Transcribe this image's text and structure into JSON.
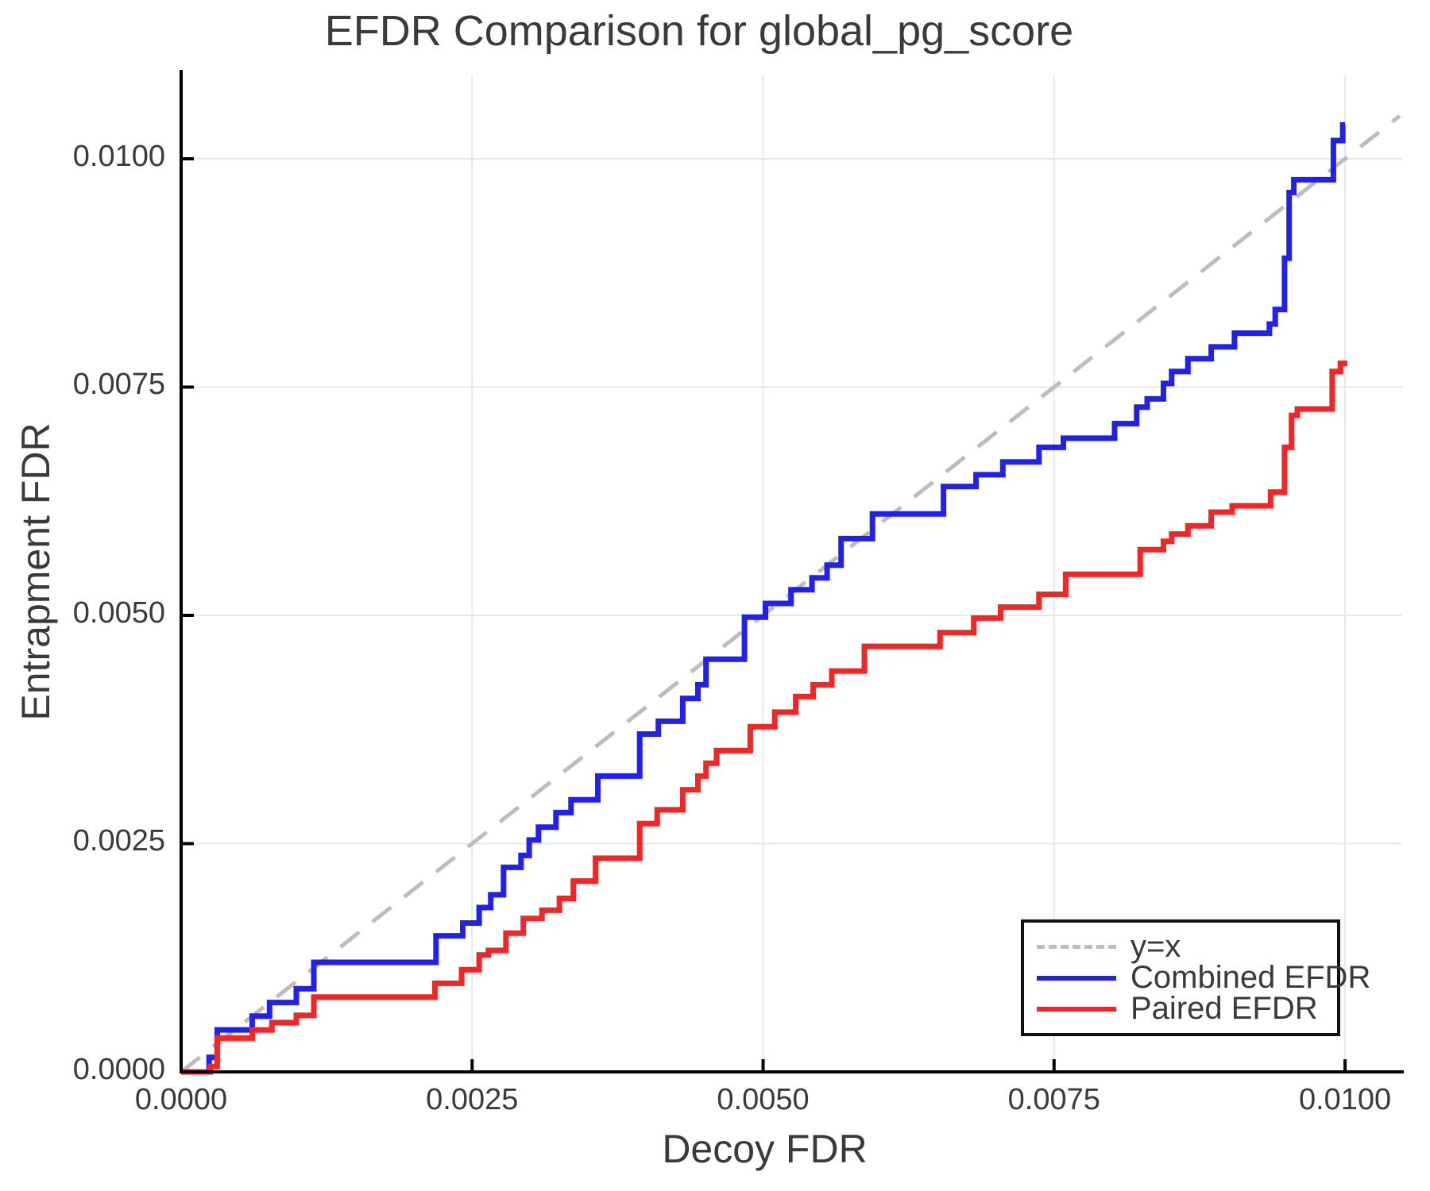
{
  "title": "EFDR Comparison for global_pg_score",
  "axes": {
    "x_label": "Decoy FDR",
    "y_label": "Entrapment FDR",
    "x_ticks": {
      "values": [
        0.0,
        0.0025,
        0.005,
        0.0075,
        0.01
      ],
      "labels": [
        "0.0000",
        "0.0025",
        "0.0050",
        "0.0075",
        "0.0100"
      ]
    },
    "y_ticks": {
      "values": [
        0.0,
        0.0025,
        0.005,
        0.0075,
        0.01
      ],
      "labels": [
        "0.0000",
        "0.0025",
        "0.0050",
        "0.0075",
        "0.0100"
      ]
    }
  },
  "colors": {
    "grid": "#e8e8e8",
    "spine": "#000000",
    "text": "#3a3a3a",
    "diagonal": "#bdbdbd",
    "combined": "#2020f0",
    "paired": "#f42525"
  },
  "legend": {
    "items": [
      {
        "label": "y=x",
        "color": "#bdbdbd",
        "dashed": true
      },
      {
        "label": "Combined EFDR",
        "color": "#2020f0",
        "dashed": false
      },
      {
        "label": "Paired EFDR",
        "color": "#f42525",
        "dashed": false
      }
    ]
  },
  "chart_data": {
    "type": "line",
    "title": "EFDR Comparison for global_pg_score",
    "xlabel": "Decoy FDR",
    "ylabel": "Entrapment FDR",
    "xlim": [
      0,
      0.010491
    ],
    "ylim": [
      0,
      0.010913
    ],
    "grid": true,
    "legend_position": "bottom-right",
    "series": [
      {
        "name": "y=x",
        "style": "dashed",
        "color": "#bdbdbd",
        "points": [
          [
            0,
            0
          ],
          [
            0.01047,
            0.01047
          ]
        ]
      },
      {
        "name": "Combined EFDR",
        "style": "step",
        "color": "#2020f0",
        "points": [
          [
            0,
            0
          ],
          [
            0.00024,
            0.00016
          ],
          [
            0.00031,
            0.00046
          ],
          [
            0.00061,
            0.00061
          ],
          [
            0.00076,
            0.00076
          ],
          [
            0.00099,
            0.00091
          ],
          [
            0.00114,
            0.0012
          ],
          [
            0.00219,
            0.00149
          ],
          [
            0.00242,
            0.00163
          ],
          [
            0.00256,
            0.0018
          ],
          [
            0.00266,
            0.00194
          ],
          [
            0.00277,
            0.00224
          ],
          [
            0.00292,
            0.00237
          ],
          [
            0.00299,
            0.00254
          ],
          [
            0.00307,
            0.00268
          ],
          [
            0.00322,
            0.00284
          ],
          [
            0.00335,
            0.00298
          ],
          [
            0.00358,
            0.00324
          ],
          [
            0.00394,
            0.0037
          ],
          [
            0.0041,
            0.00384
          ],
          [
            0.00431,
            0.00409
          ],
          [
            0.00444,
            0.00424
          ],
          [
            0.00451,
            0.00452
          ],
          [
            0.00484,
            0.00498
          ],
          [
            0.00502,
            0.00513
          ],
          [
            0.00524,
            0.00528
          ],
          [
            0.00542,
            0.00541
          ],
          [
            0.00555,
            0.00555
          ],
          [
            0.00567,
            0.00584
          ],
          [
            0.00594,
            0.00611
          ],
          [
            0.00655,
            0.00641
          ],
          [
            0.00683,
            0.00654
          ],
          [
            0.00706,
            0.00668
          ],
          [
            0.00737,
            0.00684
          ],
          [
            0.00758,
            0.00694
          ],
          [
            0.00802,
            0.0071
          ],
          [
            0.00821,
            0.00728
          ],
          [
            0.0083,
            0.00737
          ],
          [
            0.00844,
            0.00754
          ],
          [
            0.00851,
            0.00767
          ],
          [
            0.00865,
            0.00781
          ],
          [
            0.00885,
            0.00794
          ],
          [
            0.00905,
            0.00809
          ],
          [
            0.00935,
            0.00819
          ],
          [
            0.0094,
            0.00835
          ],
          [
            0.00948,
            0.00891
          ],
          [
            0.00952,
            0.00963
          ],
          [
            0.00956,
            0.00977
          ],
          [
            0.0099,
            0.0102
          ],
          [
            0.00998,
            0.01037
          ],
          [
            0.01,
            0.01037
          ]
        ]
      },
      {
        "name": "Paired EFDR",
        "style": "step",
        "color": "#f42525",
        "points": [
          [
            0,
            0
          ],
          [
            0.00025,
            6e-05
          ],
          [
            0.00031,
            0.00037
          ],
          [
            0.00061,
            0.00046
          ],
          [
            0.00078,
            0.00054
          ],
          [
            0.00099,
            0.00062
          ],
          [
            0.00114,
            0.00082
          ],
          [
            0.00218,
            0.00097
          ],
          [
            0.00241,
            0.00112
          ],
          [
            0.00256,
            0.00128
          ],
          [
            0.00264,
            0.00133
          ],
          [
            0.00279,
            0.00152
          ],
          [
            0.00294,
            0.00168
          ],
          [
            0.0031,
            0.00177
          ],
          [
            0.00325,
            0.0019
          ],
          [
            0.00337,
            0.00209
          ],
          [
            0.00356,
            0.00234
          ],
          [
            0.00394,
            0.00272
          ],
          [
            0.00409,
            0.00287
          ],
          [
            0.00431,
            0.00309
          ],
          [
            0.00444,
            0.00324
          ],
          [
            0.00451,
            0.00338
          ],
          [
            0.0046,
            0.00352
          ],
          [
            0.00489,
            0.00378
          ],
          [
            0.0051,
            0.00394
          ],
          [
            0.00528,
            0.00411
          ],
          [
            0.00543,
            0.00424
          ],
          [
            0.00559,
            0.00439
          ],
          [
            0.00587,
            0.00466
          ],
          [
            0.00652,
            0.00481
          ],
          [
            0.00681,
            0.00497
          ],
          [
            0.00704,
            0.00509
          ],
          [
            0.00737,
            0.00523
          ],
          [
            0.0076,
            0.00545
          ],
          [
            0.00824,
            0.00572
          ],
          [
            0.00844,
            0.00581
          ],
          [
            0.00851,
            0.00589
          ],
          [
            0.00865,
            0.00598
          ],
          [
            0.00885,
            0.00613
          ],
          [
            0.00903,
            0.0062
          ],
          [
            0.00936,
            0.00635
          ],
          [
            0.00948,
            0.00684
          ],
          [
            0.00954,
            0.00719
          ],
          [
            0.00959,
            0.00726
          ],
          [
            0.00989,
            0.00767
          ],
          [
            0.00996,
            0.00776
          ],
          [
            0.01002,
            0.00776
          ]
        ]
      }
    ]
  }
}
